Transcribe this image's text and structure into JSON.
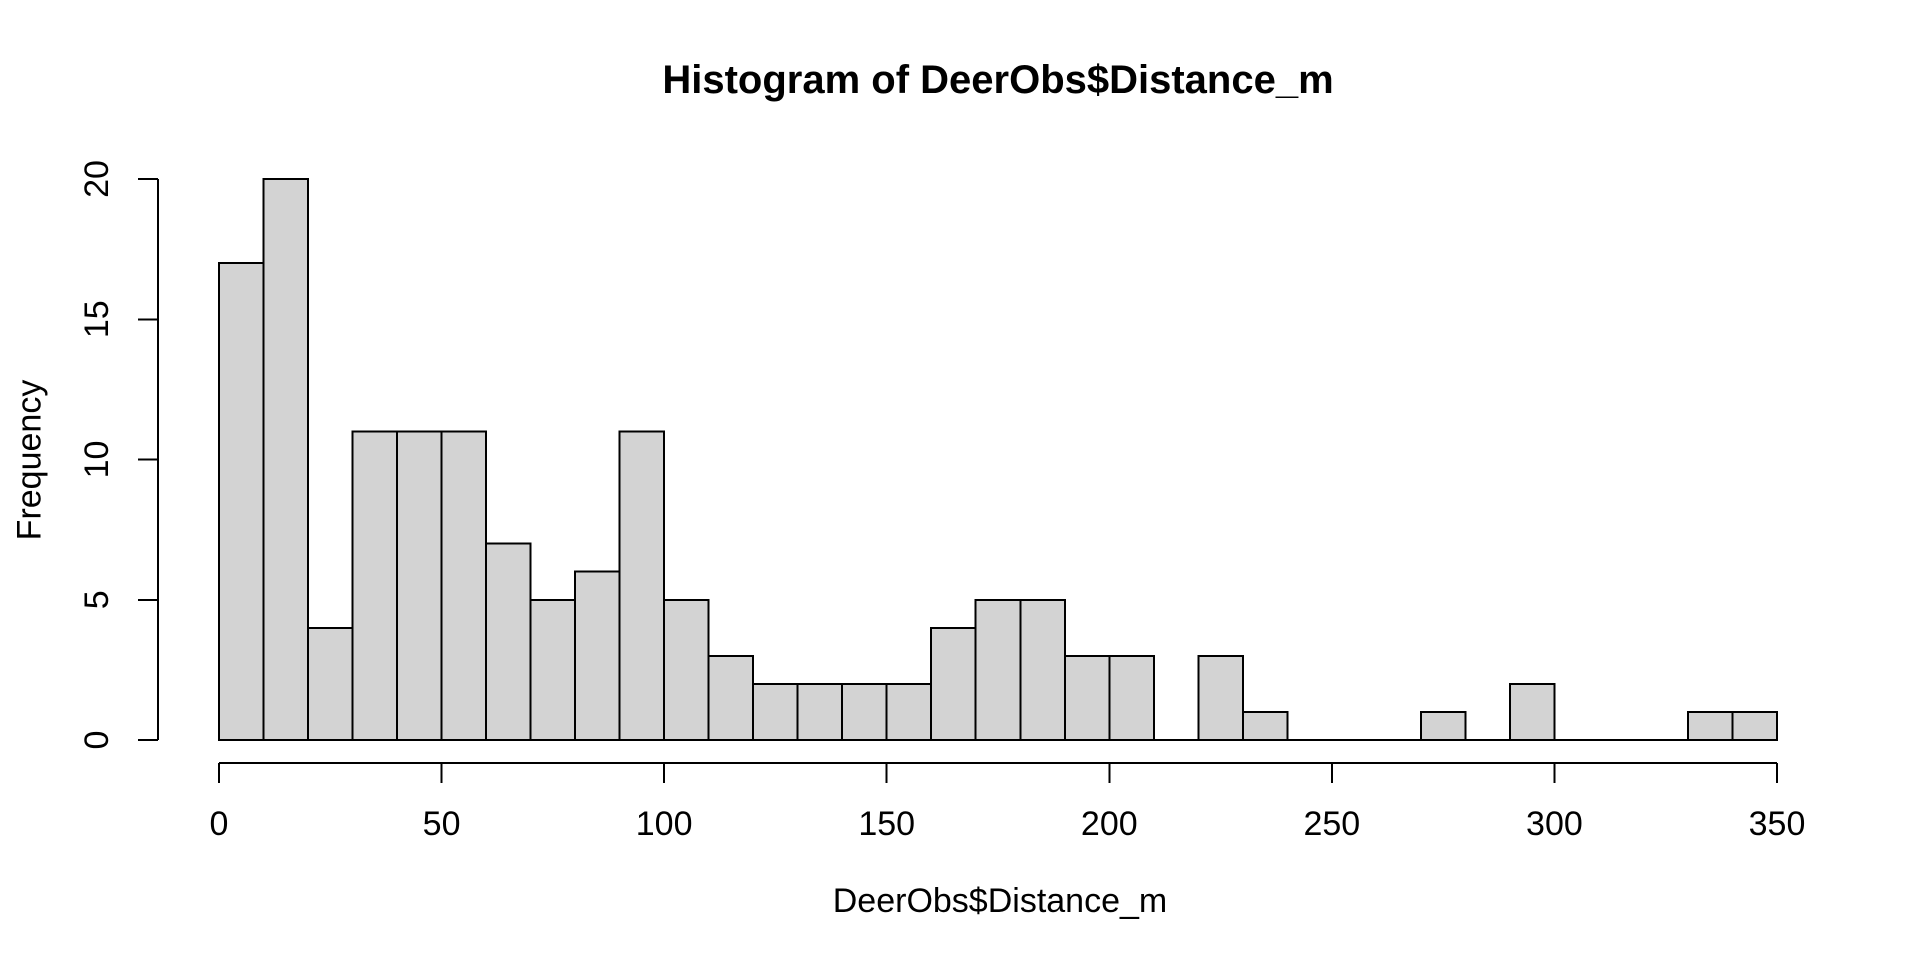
{
  "chart_data": {
    "type": "bar",
    "subtype": "histogram",
    "title": "Histogram of DeerObs$Distance_m",
    "xlabel": "DeerObs$Distance_m",
    "ylabel": "Frequency",
    "bin_edges": [
      0,
      10,
      20,
      30,
      40,
      50,
      60,
      70,
      80,
      90,
      100,
      110,
      120,
      130,
      140,
      150,
      160,
      170,
      180,
      190,
      200,
      210,
      220,
      230,
      240,
      250,
      260,
      270,
      280,
      290,
      300,
      310,
      320,
      330,
      340,
      350
    ],
    "counts": [
      17,
      20,
      4,
      11,
      11,
      11,
      7,
      5,
      6,
      11,
      5,
      3,
      2,
      2,
      2,
      2,
      4,
      5,
      5,
      3,
      3,
      0,
      3,
      1,
      0,
      0,
      0,
      1,
      0,
      2,
      0,
      0,
      0,
      1,
      1
    ],
    "x_ticks": [
      0,
      50,
      100,
      150,
      200,
      250,
      300,
      350
    ],
    "y_ticks": [
      0,
      5,
      10,
      15,
      20
    ],
    "xlim": [
      0,
      350
    ],
    "ylim": [
      0,
      20
    ],
    "grid": false,
    "legend": null,
    "colors": {
      "bar_fill": "#d3d3d3",
      "bar_stroke": "#000000",
      "axis": "#000000",
      "text": "#000000",
      "background": "#ffffff"
    }
  }
}
